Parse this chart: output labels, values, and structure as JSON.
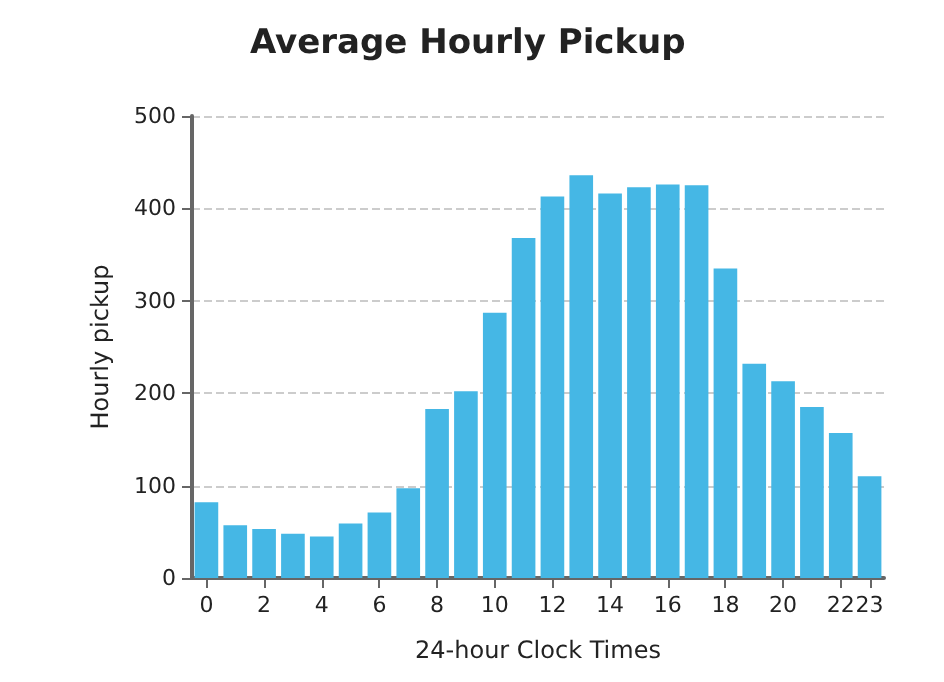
{
  "chart_data": {
    "type": "bar",
    "title": "Average Hourly Pickup",
    "xlabel": "24-hour Clock Times",
    "ylabel": "Hourly pickup",
    "categories": [
      "0",
      null,
      "2",
      null,
      "4",
      null,
      "6",
      null,
      "8",
      null,
      "10",
      null,
      "12",
      null,
      "14",
      null,
      "16",
      null,
      "18",
      null,
      "20",
      null,
      "22",
      "23"
    ],
    "values": [
      82,
      57,
      53,
      48,
      45,
      59,
      71,
      97,
      183,
      202,
      287,
      368,
      413,
      436,
      416,
      423,
      426,
      425,
      335,
      232,
      213,
      185,
      157,
      110
    ],
    "color": "#45b7e5",
    "ylim": [
      0,
      500
    ],
    "yticks": [
      0,
      100,
      200,
      300,
      400,
      500
    ],
    "grid": "y"
  }
}
